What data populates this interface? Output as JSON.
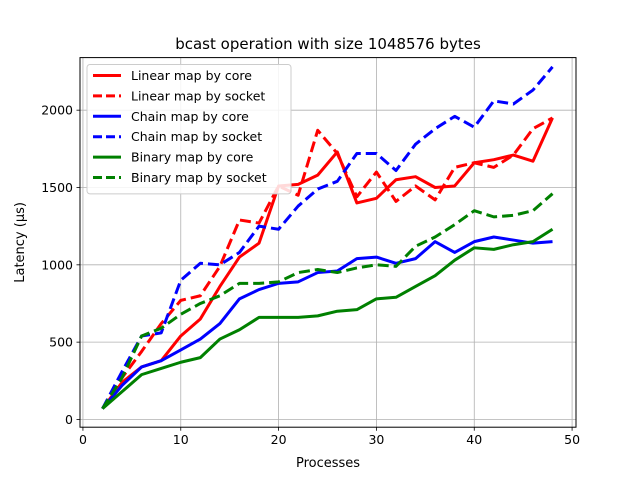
{
  "chart_data": {
    "type": "line",
    "title": "bcast operation with size 1048576 bytes",
    "xlabel": "Processes",
    "ylabel": "Latency (µs)",
    "xlim": [
      -0.3,
      50.4
    ],
    "ylim": [
      -50,
      2340
    ],
    "xticks": [
      0,
      10,
      20,
      30,
      40,
      50
    ],
    "yticks": [
      0,
      500,
      1000,
      1500,
      2000
    ],
    "grid": true,
    "legend_position": "upper-left",
    "x": [
      2,
      4,
      6,
      8,
      10,
      12,
      14,
      16,
      18,
      20,
      22,
      24,
      26,
      28,
      30,
      32,
      34,
      36,
      38,
      40,
      42,
      44,
      46,
      48
    ],
    "series": [
      {
        "name": "Linear map by core",
        "color": "#ff0000",
        "dash": "solid",
        "values": [
          70,
          240,
          340,
          380,
          540,
          650,
          860,
          1050,
          1140,
          1510,
          1520,
          1580,
          1730,
          1400,
          1430,
          1550,
          1570,
          1500,
          1510,
          1660,
          1680,
          1710,
          1670,
          1950
        ]
      },
      {
        "name": "Linear map by socket",
        "color": "#ff0000",
        "dash": "dashed",
        "values": [
          70,
          270,
          440,
          620,
          770,
          800,
          990,
          1290,
          1270,
          1510,
          1450,
          1870,
          1720,
          1440,
          1600,
          1410,
          1510,
          1420,
          1630,
          1660,
          1630,
          1710,
          1880,
          1950
        ]
      },
      {
        "name": "Chain map by core",
        "color": "#0000ff",
        "dash": "solid",
        "values": [
          70,
          220,
          340,
          380,
          450,
          520,
          620,
          780,
          840,
          880,
          890,
          950,
          960,
          1040,
          1050,
          1010,
          1040,
          1150,
          1080,
          1150,
          1180,
          1160,
          1140,
          1150
        ]
      },
      {
        "name": "Chain map by socket",
        "color": "#0000ff",
        "dash": "dashed",
        "values": [
          70,
          310,
          540,
          560,
          900,
          1010,
          1000,
          1080,
          1250,
          1230,
          1380,
          1490,
          1540,
          1720,
          1720,
          1610,
          1780,
          1880,
          1960,
          1890,
          2060,
          2040,
          2130,
          2280
        ]
      },
      {
        "name": "Binary map by core",
        "color": "#008000",
        "dash": "solid",
        "values": [
          70,
          180,
          290,
          330,
          370,
          400,
          520,
          580,
          660,
          660,
          660,
          670,
          700,
          710,
          780,
          790,
          860,
          930,
          1030,
          1110,
          1100,
          1130,
          1150,
          1230
        ]
      },
      {
        "name": "Binary map by socket",
        "color": "#008000",
        "dash": "dashed",
        "values": [
          70,
          270,
          540,
          590,
          680,
          750,
          800,
          880,
          880,
          890,
          950,
          970,
          950,
          980,
          1000,
          990,
          1120,
          1180,
          1260,
          1350,
          1310,
          1320,
          1350,
          1460
        ]
      }
    ]
  }
}
